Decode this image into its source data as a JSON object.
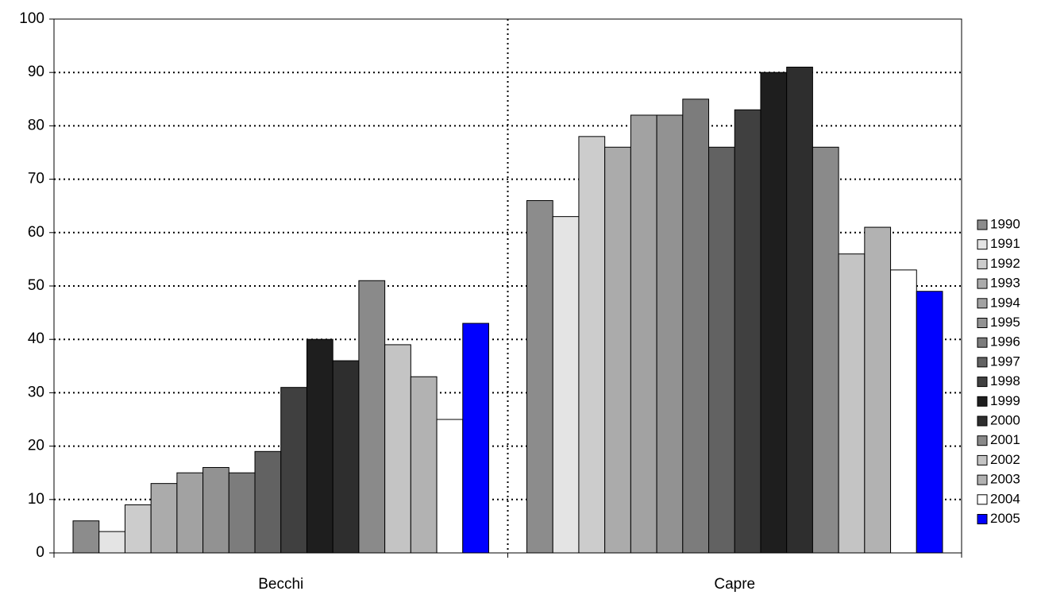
{
  "chart_data": {
    "type": "bar",
    "categories": [
      "Becchi",
      "Capre"
    ],
    "series": [
      {
        "name": "1990",
        "color": "#8c8c8c",
        "values": [
          6,
          66
        ]
      },
      {
        "name": "1991",
        "color": "#e4e4e4",
        "values": [
          4,
          63
        ]
      },
      {
        "name": "1992",
        "color": "#cccccc",
        "values": [
          9,
          78
        ]
      },
      {
        "name": "1993",
        "color": "#ababab",
        "values": [
          13,
          76
        ]
      },
      {
        "name": "1994",
        "color": "#a2a2a2",
        "values": [
          15,
          82
        ]
      },
      {
        "name": "1995",
        "color": "#929292",
        "values": [
          16,
          82
        ]
      },
      {
        "name": "1996",
        "color": "#7c7c7c",
        "values": [
          15,
          85
        ]
      },
      {
        "name": "1997",
        "color": "#626262",
        "values": [
          19,
          76
        ]
      },
      {
        "name": "1998",
        "color": "#404040",
        "values": [
          31,
          83
        ]
      },
      {
        "name": "1999",
        "color": "#1e1e1e",
        "values": [
          40,
          90
        ]
      },
      {
        "name": "2000",
        "color": "#2e2e2e",
        "values": [
          36,
          91
        ]
      },
      {
        "name": "2001",
        "color": "#8a8a8a",
        "values": [
          51,
          76
        ]
      },
      {
        "name": "2002",
        "color": "#c4c4c4",
        "values": [
          39,
          56
        ]
      },
      {
        "name": "2003",
        "color": "#b2b2b2",
        "values": [
          33,
          61
        ]
      },
      {
        "name": "2004",
        "color": "#ffffff",
        "values": [
          25,
          53
        ]
      },
      {
        "name": "2005",
        "color": "#0000ff",
        "values": [
          43,
          49
        ]
      }
    ],
    "ylim": [
      0,
      100
    ],
    "yticks": [
      0,
      10,
      20,
      30,
      40,
      50,
      60,
      70,
      80,
      90,
      100
    ],
    "grid": true,
    "legend": "right"
  }
}
